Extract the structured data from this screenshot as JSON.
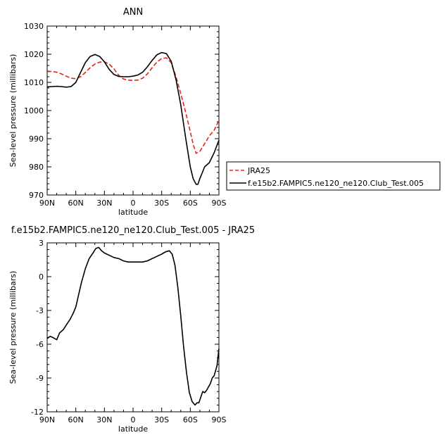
{
  "chart_data": [
    {
      "type": "line",
      "title": "ANN",
      "xlabel": "latitude",
      "ylabel": "Sea-level pressure (millibars)",
      "xlim": [
        90,
        -90
      ],
      "ylim": [
        970,
        1030
      ],
      "x_tick_labels": [
        "90N",
        "60N",
        "30N",
        "0",
        "30S",
        "60S",
        "90S"
      ],
      "x_tick_values": [
        90,
        60,
        30,
        0,
        -30,
        -60,
        -90
      ],
      "y_tick_values": [
        970,
        980,
        990,
        1000,
        1010,
        1020,
        1030
      ],
      "legend_position": "right",
      "series": [
        {
          "name": "JRA25",
          "color": "#e8231c",
          "style": "dashed",
          "x": [
            90,
            85,
            80,
            75,
            70,
            65,
            60,
            55,
            50,
            45,
            40,
            35,
            30,
            25,
            20,
            15,
            10,
            5,
            0,
            -5,
            -10,
            -15,
            -20,
            -25,
            -30,
            -35,
            -40,
            -45,
            -50,
            -55,
            -60,
            -63,
            -66,
            -70,
            -75,
            -80,
            -85,
            -90
          ],
          "y": [
            1013.8,
            1013.9,
            1013.6,
            1013.0,
            1012.2,
            1011.5,
            1011.3,
            1012.0,
            1013.5,
            1015.2,
            1016.5,
            1017.2,
            1017.3,
            1016.5,
            1014.8,
            1012.5,
            1011.2,
            1010.8,
            1010.7,
            1010.8,
            1011.5,
            1013.0,
            1015.2,
            1017.2,
            1018.5,
            1018.7,
            1017.0,
            1012.0,
            1006.0,
            999.5,
            992.5,
            988.0,
            984.8,
            985.5,
            988.2,
            991.0,
            993.0,
            996.5
          ]
        },
        {
          "name": "f.e15b2.FAMPIC5.ne120_ne120.Club_Test.005",
          "color": "#000000",
          "style": "solid",
          "x": [
            90,
            85,
            80,
            75,
            70,
            65,
            60,
            55,
            50,
            45,
            40,
            35,
            30,
            25,
            20,
            15,
            10,
            5,
            0,
            -5,
            -10,
            -15,
            -20,
            -25,
            -30,
            -35,
            -40,
            -45,
            -50,
            -55,
            -60,
            -63,
            -66,
            -68,
            -70,
            -75,
            -80,
            -85,
            -90
          ],
          "y": [
            1008.4,
            1008.5,
            1008.6,
            1008.5,
            1008.3,
            1008.5,
            1010.0,
            1013.5,
            1017.0,
            1019.2,
            1019.9,
            1019.2,
            1017.3,
            1014.6,
            1012.8,
            1012.1,
            1012.0,
            1012.0,
            1012.2,
            1012.6,
            1013.6,
            1015.5,
            1017.8,
            1019.8,
            1020.6,
            1020.2,
            1017.5,
            1011.0,
            1002.0,
            990.5,
            980.0,
            975.8,
            973.8,
            973.8,
            975.8,
            980.0,
            981.5,
            985.0,
            989.5
          ]
        }
      ]
    },
    {
      "type": "line",
      "title": "f.e15b2.FAMPIC5.ne120_ne120.Club_Test.005 - JRA25",
      "xlabel": "latitude",
      "ylabel": "Sea-level pressure (millibars)",
      "xlim": [
        90,
        -90
      ],
      "ylim": [
        -12,
        3
      ],
      "x_tick_labels": [
        "90N",
        "60N",
        "30N",
        "0",
        "30S",
        "60S",
        "90S"
      ],
      "x_tick_values": [
        90,
        60,
        30,
        0,
        -30,
        -60,
        -90
      ],
      "y_tick_values": [
        -12,
        -9,
        -6,
        -3,
        0,
        3
      ],
      "series": [
        {
          "name": "",
          "color": "#000000",
          "style": "solid",
          "x": [
            90,
            87,
            84,
            80,
            77,
            73,
            70,
            66,
            63,
            60,
            57,
            54,
            50,
            46,
            42,
            39,
            36,
            33,
            30,
            25,
            20,
            15,
            10,
            5,
            0,
            -5,
            -10,
            -15,
            -20,
            -25,
            -30,
            -34,
            -38,
            -41,
            -44,
            -47,
            -50,
            -53,
            -56,
            -59,
            -62,
            -65,
            -67,
            -69,
            -71,
            -73,
            -75,
            -77,
            -79,
            -81,
            -83,
            -85,
            -88,
            -90
          ],
          "y": [
            -5.5,
            -5.3,
            -5.4,
            -5.6,
            -5.0,
            -4.7,
            -4.3,
            -3.8,
            -3.3,
            -2.7,
            -1.6,
            -0.5,
            0.7,
            1.6,
            2.1,
            2.5,
            2.6,
            2.3,
            2.1,
            1.9,
            1.7,
            1.6,
            1.4,
            1.3,
            1.3,
            1.3,
            1.3,
            1.4,
            1.6,
            1.8,
            2.0,
            2.2,
            2.3,
            2.0,
            1.0,
            -1.0,
            -3.5,
            -6.2,
            -8.5,
            -10.3,
            -11.1,
            -11.4,
            -11.2,
            -11.2,
            -10.7,
            -10.2,
            -10.3,
            -10.1,
            -9.8,
            -9.5,
            -9.0,
            -8.8,
            -7.9,
            -6.4
          ]
        }
      ]
    }
  ]
}
